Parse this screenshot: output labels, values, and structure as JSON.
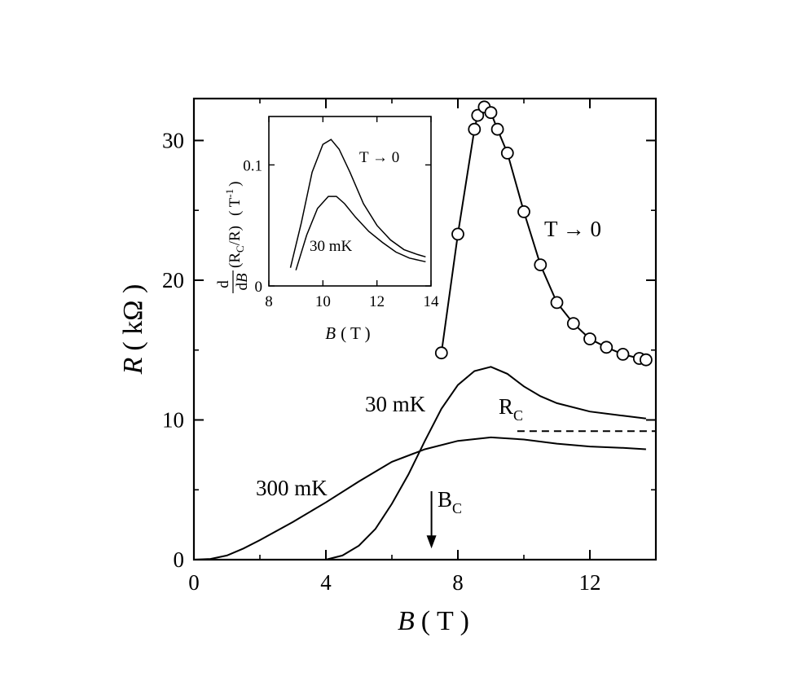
{
  "chart_data": {
    "type": "line",
    "xlabel": {
      "var": "B",
      "unit": "( T )"
    },
    "ylabel": {
      "var": "R",
      "unit": "( kΩ )"
    },
    "xlim": [
      0,
      14
    ],
    "ylim": [
      0,
      33
    ],
    "x_ticks": [
      "0",
      "4",
      "8",
      "12"
    ],
    "y_ticks": [
      "0",
      "10",
      "20",
      "30"
    ],
    "grid": false,
    "series": [
      {
        "name": "T → 0",
        "style": "line-with-open-circles",
        "x": [
          7.5,
          8.0,
          8.5,
          8.6,
          8.8,
          9.0,
          9.2,
          9.5,
          10.0,
          10.5,
          11.0,
          11.5,
          12.0,
          12.5,
          13.0,
          13.5,
          13.7
        ],
        "y": [
          14.8,
          23.3,
          30.8,
          31.8,
          32.4,
          32.0,
          30.8,
          29.1,
          24.9,
          21.1,
          18.4,
          16.9,
          15.8,
          15.2,
          14.7,
          14.4,
          14.3
        ]
      },
      {
        "name": "30 mK",
        "style": "line",
        "x": [
          4.0,
          4.5,
          5.0,
          5.5,
          6.0,
          6.5,
          7.0,
          7.5,
          8.0,
          8.5,
          9.0,
          9.5,
          10.0,
          10.5,
          11.0,
          12.0,
          13.0,
          13.7
        ],
        "y": [
          0.0,
          0.3,
          1.0,
          2.2,
          4.0,
          6.1,
          8.5,
          10.8,
          12.5,
          13.5,
          13.8,
          13.3,
          12.4,
          11.7,
          11.2,
          10.6,
          10.3,
          10.1
        ]
      },
      {
        "name": "300 mK",
        "style": "line",
        "x": [
          0.0,
          0.5,
          1.0,
          1.5,
          2.0,
          3.0,
          4.0,
          5.0,
          6.0,
          7.0,
          8.0,
          9.0,
          10.0,
          11.0,
          12.0,
          13.0,
          13.7
        ],
        "y": [
          0.0,
          0.05,
          0.3,
          0.8,
          1.4,
          2.7,
          4.1,
          5.6,
          7.0,
          7.9,
          8.5,
          8.75,
          8.6,
          8.3,
          8.1,
          8.0,
          7.9
        ]
      }
    ],
    "reference_line": {
      "label": "R",
      "subscript": "C",
      "y": 9.2,
      "x_range": [
        9.8,
        14.0
      ],
      "style": "dashed"
    },
    "arrow": {
      "label": "B",
      "subscript": "C",
      "x": 7.2,
      "y_from": 4.9,
      "y_to": 0.8
    },
    "annotations": {
      "main_t0": "T → 0",
      "mk30": "30 mK",
      "mk300": "300 mK"
    },
    "inset": {
      "type": "line",
      "xlabel": {
        "var": "B",
        "unit": "( T )"
      },
      "ylabel": {
        "frac_num": "d",
        "frac_den_d": "d",
        "frac_den_var": "B",
        "expr": "(R",
        "sub": "C",
        "expr_end": "/R)",
        "unit": "( T",
        "unit_sup": "-1",
        "unit_end": ")"
      },
      "xlim": [
        8,
        14
      ],
      "ylim": [
        0,
        0.14
      ],
      "x_ticks": [
        "8",
        "10",
        "12",
        "14"
      ],
      "y_ticks": [
        "0",
        "0.1"
      ],
      "series": [
        {
          "name": "T → 0",
          "x": [
            8.8,
            9.2,
            9.6,
            10.0,
            10.3,
            10.6,
            11.0,
            11.5,
            12.0,
            12.5,
            13.0,
            13.5,
            13.8
          ],
          "y": [
            0.015,
            0.052,
            0.094,
            0.117,
            0.121,
            0.113,
            0.094,
            0.068,
            0.05,
            0.038,
            0.03,
            0.026,
            0.024
          ]
        },
        {
          "name": "30 mK",
          "x": [
            9.0,
            9.4,
            9.8,
            10.2,
            10.5,
            10.8,
            11.2,
            11.7,
            12.2,
            12.7,
            13.2,
            13.6,
            13.8
          ],
          "y": [
            0.013,
            0.042,
            0.064,
            0.074,
            0.074,
            0.068,
            0.057,
            0.045,
            0.036,
            0.028,
            0.023,
            0.021,
            0.02
          ]
        }
      ],
      "annotations": {
        "t0": "T → 0",
        "mk30": "30 mK"
      }
    }
  }
}
